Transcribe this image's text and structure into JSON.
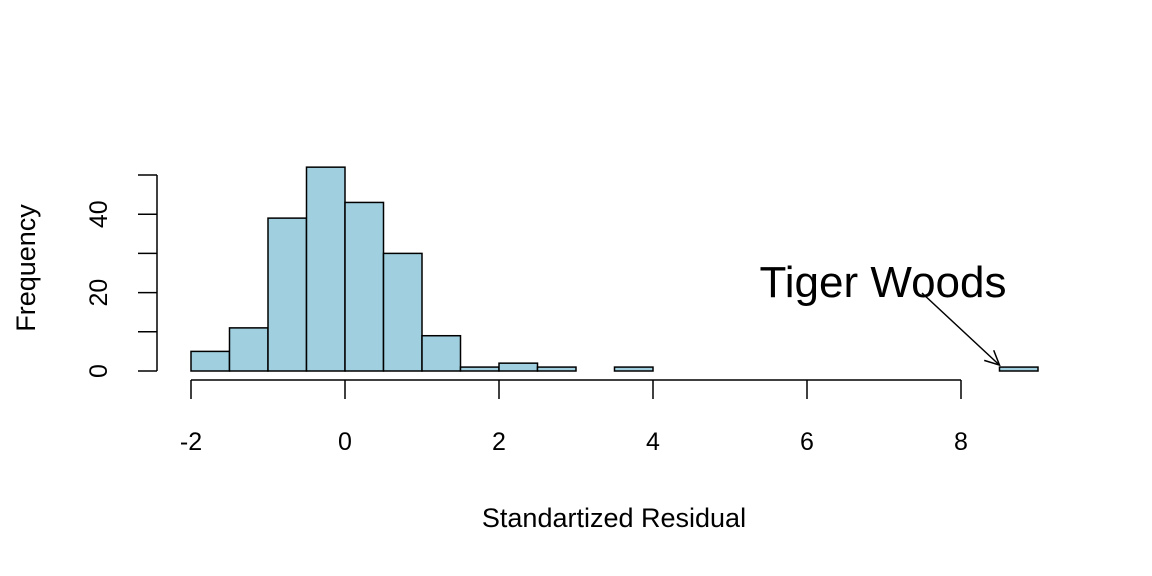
{
  "chart_data": {
    "type": "bar",
    "subtype": "histogram",
    "xlabel": "Standartized Residual",
    "ylabel": "Frequency",
    "bin_edges": [
      -2,
      -1.5,
      -1,
      -0.5,
      0,
      0.5,
      1,
      1.5,
      2,
      2.5,
      3,
      3.5,
      4,
      4.5,
      5,
      5.5,
      6,
      6.5,
      7,
      7.5,
      8,
      8.5,
      9
    ],
    "values": [
      5,
      11,
      39,
      52,
      43,
      30,
      9,
      1,
      2,
      1,
      0,
      1,
      0,
      0,
      0,
      0,
      0,
      0,
      0,
      0,
      0,
      1
    ],
    "xticks": [
      -2,
      0,
      2,
      4,
      6,
      8
    ],
    "xtick_labels": [
      "-2",
      "0",
      "2",
      "4",
      "6",
      "8"
    ],
    "yticks": [
      0,
      10,
      20,
      30,
      40,
      50
    ],
    "ytick_labels": [
      "0",
      "",
      "20",
      "",
      "40",
      ""
    ],
    "xlim": [
      -2,
      9
    ],
    "ylim": [
      0,
      52
    ],
    "bar_color": "#a0d0e0",
    "annotation": {
      "text": "Tiger Woods",
      "target_x": 8.5,
      "target_y": 1.5
    }
  }
}
